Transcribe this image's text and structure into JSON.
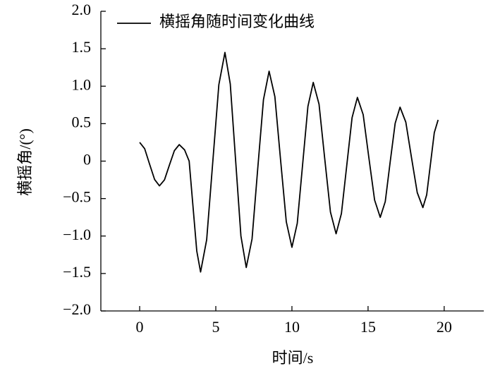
{
  "chart_data": {
    "type": "line",
    "x_label": "时间/s",
    "y_label": "横摇角/(°)",
    "x": [
      0,
      0.33,
      0.65,
      0.98,
      1.3,
      1.63,
      1.95,
      2.28,
      2.6,
      2.95,
      3.25,
      3.5,
      3.75,
      4.0,
      4.4,
      4.8,
      5.2,
      5.6,
      5.95,
      6.3,
      6.65,
      7.0,
      7.38,
      7.75,
      8.13,
      8.5,
      8.88,
      9.25,
      9.63,
      10.0,
      10.35,
      10.7,
      11.05,
      11.4,
      11.78,
      12.15,
      12.53,
      12.9,
      13.25,
      13.6,
      13.95,
      14.3,
      14.68,
      15.05,
      15.43,
      15.8,
      16.13,
      16.45,
      16.78,
      17.1,
      17.48,
      17.85,
      18.23,
      18.6,
      18.85,
      19.1,
      19.35,
      19.6
    ],
    "series": [
      {
        "name": "横摇角随时间变化曲线",
        "color": "#000000",
        "values": [
          0.25,
          0.165,
          -0.04,
          -0.245,
          -0.33,
          -0.25,
          -0.055,
          0.14,
          0.22,
          0.15,
          0.0,
          -0.6,
          -1.2,
          -1.48,
          -1.05,
          -0.015,
          1.02,
          1.45,
          1.03,
          0.015,
          -1.0,
          -1.42,
          -1.04,
          -0.11,
          0.82,
          1.2,
          0.86,
          0.025,
          -0.81,
          -1.15,
          -0.83,
          -0.05,
          0.73,
          1.05,
          0.76,
          0.04,
          -0.68,
          -0.97,
          -0.7,
          -0.06,
          0.58,
          0.85,
          0.62,
          0.05,
          -0.52,
          -0.75,
          -0.54,
          -0.015,
          0.505,
          0.72,
          0.52,
          0.05,
          -0.42,
          -0.62,
          -0.45,
          -0.035,
          0.38,
          0.55
        ]
      }
    ],
    "xlim": [
      -2.55,
      22.6
    ],
    "ylim": [
      -2,
      2
    ],
    "xticks": [
      0,
      5,
      10,
      15,
      20
    ],
    "yticks": [
      {
        "value": -2,
        "label": "−2.0"
      },
      {
        "value": -1.5,
        "label": "−1.5"
      },
      {
        "value": -1,
        "label": "−1.0"
      },
      {
        "value": -0.5,
        "label": "−0.5"
      },
      0,
      0.5,
      {
        "value": 1,
        "label": "1.0"
      },
      1.5,
      {
        "value": 2,
        "label": "2.0"
      }
    ],
    "legend": "upper-left"
  }
}
